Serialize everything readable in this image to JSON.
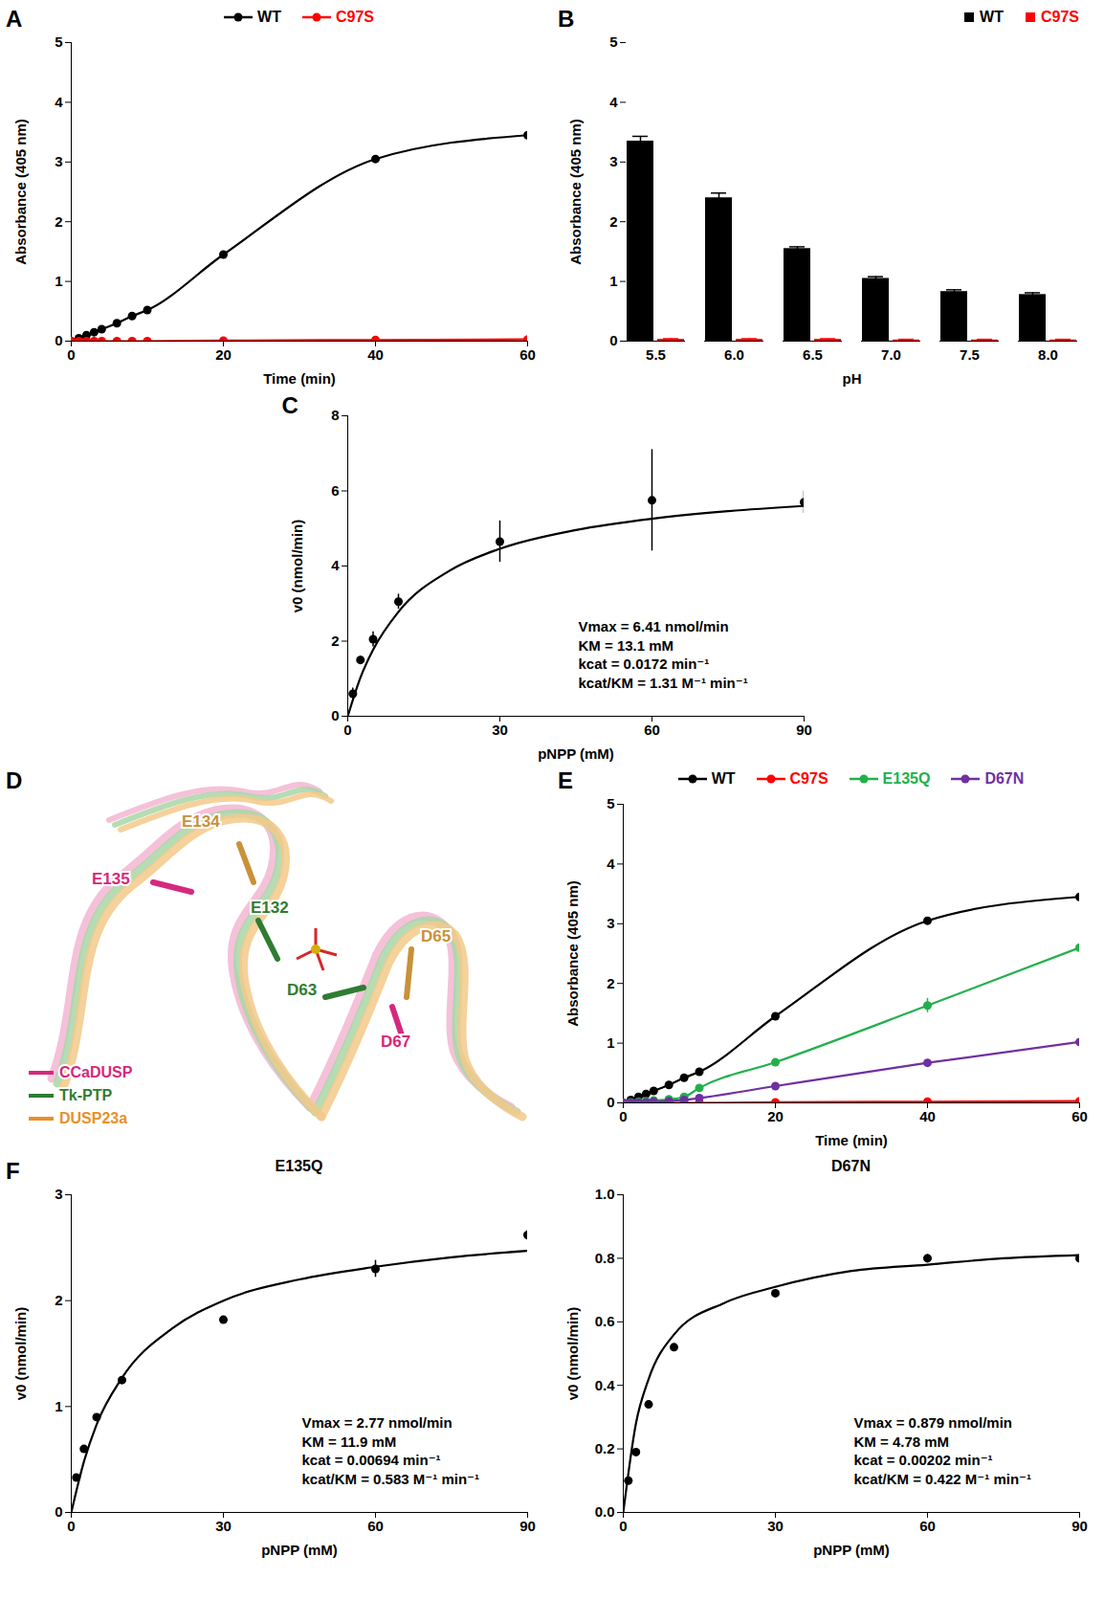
{
  "chart_data": [
    {
      "panel": "A",
      "type": "line",
      "x": [
        0,
        1,
        2,
        3,
        4,
        6,
        8,
        10,
        20,
        40,
        60
      ],
      "series": [
        {
          "name": "WT",
          "color": "#000000",
          "marker": "circle",
          "values": [
            0,
            0.05,
            0.1,
            0.15,
            0.2,
            0.3,
            0.42,
            0.52,
            1.45,
            3.05,
            3.45
          ]
        },
        {
          "name": "C97S",
          "color": "#ff0000",
          "marker": "circle",
          "values": [
            0,
            0,
            0,
            0,
            0,
            0,
            0,
            0,
            0.01,
            0.02,
            0.03
          ]
        }
      ],
      "xlabel": "Time (min)",
      "ylabel": "Absorbance (405 nm)",
      "xlim": [
        0,
        60
      ],
      "xticks": [
        0,
        20,
        40,
        60
      ],
      "ylim": [
        0,
        5
      ],
      "yticks": [
        0,
        1,
        2,
        3,
        4,
        5
      ],
      "legend": "top"
    },
    {
      "panel": "B",
      "type": "bar",
      "categories": [
        "5.5",
        "6.0",
        "6.5",
        "7.0",
        "7.5",
        "8.0"
      ],
      "series": [
        {
          "name": "WT",
          "color": "#000000",
          "values": [
            3.35,
            2.4,
            1.55,
            1.05,
            0.83,
            0.78
          ],
          "errors": [
            0.08,
            0.08,
            0.03,
            0.03,
            0.03,
            0.03
          ]
        },
        {
          "name": "C97S",
          "color": "#ff0000",
          "values": [
            0.03,
            0.03,
            0.03,
            0.02,
            0.02,
            0.02
          ],
          "errors": [
            0.01,
            0.01,
            0.01,
            0.01,
            0.01,
            0.01
          ]
        }
      ],
      "xlabel": "pH",
      "ylabel": "Absorbance (405 nm)",
      "ylim": [
        0,
        5
      ],
      "yticks": [
        0,
        1,
        2,
        3,
        4,
        5
      ],
      "legend": "top-right"
    },
    {
      "panel": "C",
      "type": "scatter",
      "x": [
        1,
        2.5,
        5,
        10,
        30,
        60,
        90
      ],
      "values": [
        0.6,
        1.5,
        2.05,
        3.05,
        4.65,
        5.75,
        5.7
      ],
      "errors": [
        0.15,
        0.1,
        0.2,
        0.2,
        0.55,
        1.35,
        0.3
      ],
      "color": "#000000",
      "fit": {
        "x": [
          0,
          2.5,
          5,
          10,
          20,
          30,
          45,
          60,
          75,
          90
        ],
        "values": [
          0,
          1.03,
          1.77,
          2.78,
          3.87,
          4.46,
          4.96,
          5.26,
          5.46,
          5.6
        ]
      },
      "annotations": [
        "Vmax = 6.41 nmol/min",
        "KM = 13.1 mM",
        "kcat = 0.0172 min⁻¹",
        "kcat/KM = 1.31 M⁻¹ min⁻¹"
      ],
      "xlabel": "pNPP (mM)",
      "ylabel": "v0 (nmol/min)",
      "xlim": [
        0,
        90
      ],
      "xticks": [
        0,
        30,
        60,
        90
      ],
      "ylim": [
        0,
        8
      ],
      "yticks": [
        0,
        2,
        4,
        6,
        8
      ]
    },
    {
      "panel": "D",
      "type": "structure",
      "labels": [
        {
          "text": "E134",
          "color": "#c8913a"
        },
        {
          "text": "E135",
          "color": "#d6287d"
        },
        {
          "text": "E132",
          "color": "#2e7d32"
        },
        {
          "text": "D65",
          "color": "#c8913a"
        },
        {
          "text": "D63",
          "color": "#2e7d32"
        },
        {
          "text": "D67",
          "color": "#d6287d"
        }
      ],
      "series": [
        {
          "name": "CCaDUSP",
          "color": "#d6287d"
        },
        {
          "name": "Tk-PTP",
          "color": "#2e7d32"
        },
        {
          "name": "DUSP23a",
          "color": "#e8902a"
        }
      ],
      "legend": "bottom-left"
    },
    {
      "panel": "E",
      "type": "line",
      "x": [
        0,
        1,
        2,
        3,
        4,
        6,
        8,
        10,
        20,
        40,
        60
      ],
      "series": [
        {
          "name": "WT",
          "color": "#000000",
          "marker": "circle",
          "values": [
            0,
            0.05,
            0.1,
            0.15,
            0.2,
            0.3,
            0.42,
            0.52,
            1.45,
            3.05,
            3.45
          ]
        },
        {
          "name": "C97S",
          "color": "#ff0000",
          "marker": "circle",
          "values": [
            0,
            0,
            0,
            0,
            0,
            0,
            0,
            0,
            0.01,
            0.02,
            0.03
          ]
        },
        {
          "name": "E135Q",
          "color": "#22b04b",
          "marker": "circle",
          "values": [
            0,
            0.01,
            0.02,
            0.03,
            0.04,
            0.06,
            0.1,
            0.25,
            0.68,
            1.63,
            2.6
          ],
          "errors": [
            null,
            null,
            null,
            null,
            null,
            null,
            null,
            null,
            null,
            0.12,
            null
          ]
        },
        {
          "name": "D67N",
          "color": "#7030a0",
          "marker": "circle",
          "values": [
            0,
            0,
            0.01,
            0.01,
            0.02,
            0.03,
            0.05,
            0.08,
            0.28,
            0.67,
            1.02
          ]
        }
      ],
      "xlabel": "Time (min)",
      "ylabel": "Absorbance (405 nm)",
      "xlim": [
        0,
        60
      ],
      "xticks": [
        0,
        20,
        40,
        60
      ],
      "ylim": [
        0,
        5
      ],
      "yticks": [
        0,
        1,
        2,
        3,
        4,
        5
      ],
      "legend": "top"
    },
    {
      "panel": "F",
      "type": "scatter",
      "title": "E135Q",
      "x": [
        1,
        2.5,
        5,
        10,
        30,
        60,
        90
      ],
      "values": [
        0.33,
        0.6,
        0.9,
        1.25,
        1.82,
        2.3,
        2.62
      ],
      "errors": [
        0.02,
        0.02,
        0.03,
        0.03,
        0.03,
        0.08,
        0.05
      ],
      "color": "#000000",
      "fit": {
        "x": [
          0,
          2.5,
          5,
          10,
          20,
          30,
          45,
          60,
          75,
          90
        ],
        "values": [
          0,
          0.48,
          0.83,
          1.27,
          1.74,
          2.0,
          2.2,
          2.32,
          2.41,
          2.47
        ]
      },
      "annotations": [
        "Vmax = 2.77 nmol/min",
        "KM = 11.9 mM",
        "kcat = 0.00694 min⁻¹",
        "kcat/KM = 0.583 M⁻¹ min⁻¹"
      ],
      "xlabel": "pNPP (mM)",
      "ylabel": "v0 (nmol/min)",
      "xlim": [
        0,
        90
      ],
      "xticks": [
        0,
        30,
        60,
        90
      ],
      "ylim": [
        0,
        3
      ],
      "yticks": [
        0,
        1,
        2,
        3
      ]
    },
    {
      "type": "scatter",
      "title": "D67N",
      "x": [
        1,
        2.5,
        5,
        10,
        30,
        60,
        90
      ],
      "values": [
        0.1,
        0.19,
        0.34,
        0.52,
        0.69,
        0.8,
        0.8
      ],
      "errors": [
        0.005,
        0.005,
        0.005,
        0.005,
        0.005,
        0.012,
        0.008
      ],
      "color": "#000000",
      "fit": {
        "x": [
          0,
          2.5,
          5,
          10,
          20,
          30,
          45,
          60,
          75,
          90
        ],
        "values": [
          0,
          0.28,
          0.42,
          0.56,
          0.66,
          0.71,
          0.76,
          0.78,
          0.8,
          0.81
        ]
      },
      "annotations": [
        "Vmax = 0.879 nmol/min",
        "KM = 4.78 mM",
        "kcat = 0.00202 min⁻¹",
        "kcat/KM = 0.422 M⁻¹ min⁻¹"
      ],
      "xlabel": "pNPP (mM)",
      "ylabel": "v0 (nmol/min)",
      "xlim": [
        0,
        90
      ],
      "xticks": [
        0,
        30,
        60,
        90
      ],
      "ylim": [
        0,
        1
      ],
      "yticks": [
        {
          "value": 0,
          "label": "0.0"
        },
        0.2,
        0.4,
        0.6,
        0.8,
        {
          "value": 1,
          "label": "1.0"
        }
      ]
    }
  ]
}
